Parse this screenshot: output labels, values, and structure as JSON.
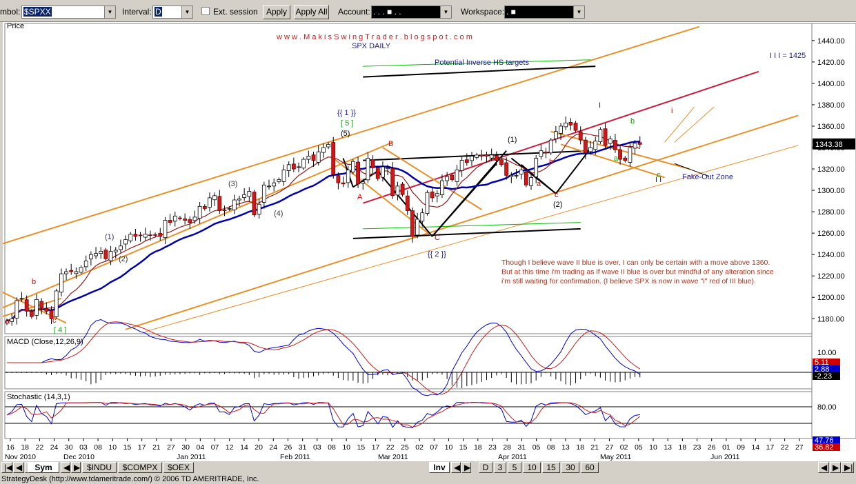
{
  "toolbar": {
    "symbol_label": "mbol:",
    "symbol_value": "$SPXX",
    "interval_label": "Interval:",
    "interval_value": "D",
    "ext_session_label": "Ext. session",
    "apply_label": "Apply",
    "apply_all_label": "Apply All",
    "account_label": "Account:",
    "account_value": ".   .   .   ■   .   .",
    "workspace_label": "Workspace:",
    "workspace_value": ".   ■"
  },
  "chart_data": [
    {
      "type": "candlestick",
      "title": "SPX DAILY",
      "watermark": "w w w . M a k i s S w i n g T r a d e r . b l o g s p o t . c o m",
      "ylabel": "Price",
      "ylim": [
        1166,
        1456
      ],
      "yticks": [
        1180,
        1200,
        1220,
        1240,
        1260,
        1280,
        1300,
        1320,
        1340,
        1360,
        1380,
        1400,
        1420,
        1440
      ],
      "last_price": "1343.38",
      "trading_days": [
        "Nov 16",
        "Nov 17",
        "Nov 18",
        "Nov 19",
        "Nov 22",
        "Nov 23",
        "Nov 24",
        "Nov 26",
        "Nov 29",
        "Nov 30",
        "Dec 01",
        "Dec 02",
        "Dec 03",
        "Dec 06",
        "Dec 07",
        "Dec 08",
        "Dec 09",
        "Dec 10",
        "Dec 13",
        "Dec 14",
        "Dec 15",
        "Dec 16",
        "Dec 17",
        "Dec 20",
        "Dec 21",
        "Dec 22",
        "Dec 23",
        "Dec 27",
        "Dec 28",
        "Dec 29",
        "Dec 30",
        "Dec 31",
        "Jan 03",
        "Jan 04",
        "Jan 05",
        "Jan 06",
        "Jan 07",
        "Jan 10",
        "Jan 11",
        "Jan 12",
        "Jan 13",
        "Jan 14",
        "Jan 18",
        "Jan 19",
        "Jan 20",
        "Jan 21",
        "Jan 24",
        "Jan 25",
        "Jan 26",
        "Jan 27",
        "Jan 28",
        "Jan 31",
        "Feb 01",
        "Feb 02",
        "Feb 03",
        "Feb 04",
        "Feb 07",
        "Feb 08",
        "Feb 09",
        "Feb 10",
        "Feb 11",
        "Feb 14",
        "Feb 15",
        "Feb 16",
        "Feb 17",
        "Feb 18",
        "Feb 22",
        "Feb 23",
        "Feb 24",
        "Feb 25",
        "Feb 28",
        "Mar 01",
        "Mar 02",
        "Mar 03",
        "Mar 04",
        "Mar 07",
        "Mar 08",
        "Mar 09",
        "Mar 10",
        "Mar 11",
        "Mar 14",
        "Mar 15",
        "Mar 16",
        "Mar 17",
        "Mar 18",
        "Mar 21",
        "Mar 22",
        "Mar 23",
        "Mar 24",
        "Mar 25",
        "Mar 28",
        "Mar 29",
        "Mar 30",
        "Mar 31",
        "Apr 01",
        "Apr 04",
        "Apr 05",
        "Apr 06",
        "Apr 07",
        "Apr 08",
        "Apr 11",
        "Apr 12",
        "Apr 13",
        "Apr 14",
        "Apr 15",
        "Apr 18",
        "Apr 19",
        "Apr 20",
        "Apr 21",
        "Apr 25",
        "Apr 26",
        "Apr 27",
        "Apr 28",
        "Apr 29",
        "May 02",
        "May 03",
        "May 04",
        "May 05",
        "May 06",
        "May 09",
        "May 10",
        "May 11",
        "May 12",
        "May 13",
        "May 16",
        "May 17",
        "May 18",
        "May 19",
        "May 20"
      ],
      "close": [
        1178,
        1180,
        1197,
        1199,
        1187,
        1182,
        1198,
        1190,
        1187,
        1180,
        1206,
        1222,
        1224,
        1224,
        1224,
        1228,
        1234,
        1240,
        1241,
        1243,
        1236,
        1243,
        1244,
        1248,
        1254,
        1259,
        1257,
        1258,
        1259,
        1258,
        1258,
        1257,
        1272,
        1270,
        1276,
        1274,
        1272,
        1270,
        1275,
        1285,
        1283,
        1293,
        1295,
        1281,
        1281,
        1283,
        1291,
        1292,
        1296,
        1299,
        1277,
        1287,
        1305,
        1304,
        1307,
        1310,
        1319,
        1324,
        1320,
        1322,
        1329,
        1332,
        1328,
        1336,
        1340,
        1343,
        1315,
        1307,
        1306,
        1319,
        1327,
        1306,
        1308,
        1330,
        1321,
        1311,
        1322,
        1321,
        1295,
        1304,
        1296,
        1281,
        1257,
        1273,
        1279,
        1298,
        1293,
        1297,
        1309,
        1313,
        1310,
        1319,
        1328,
        1326,
        1332,
        1333,
        1332,
        1332,
        1333,
        1328,
        1324,
        1314,
        1314,
        1314,
        1319,
        1305,
        1312,
        1330,
        1337,
        1335,
        1347,
        1355,
        1360,
        1363,
        1361,
        1356,
        1347,
        1335,
        1340,
        1346,
        1357,
        1342,
        1348,
        1338,
        1329,
        1328,
        1340,
        1344,
        1343
      ],
      "series": [
        {
          "name": "MA fast",
          "color": "#8b1a1a"
        },
        {
          "name": "MA slow",
          "color": "#0000aa"
        }
      ],
      "annotations": [
        {
          "text": "Potential Inverse HS targets",
          "color": "#1a1a9a"
        },
        {
          "text": "I I I = 1425",
          "color": "#1a1a9a"
        },
        {
          "text": "{{ 1 }}",
          "color": "#1a1a9a"
        },
        {
          "text": "[ 5 ]",
          "color": "#00aa00"
        },
        {
          "text": "(5)",
          "color": "#000000"
        },
        {
          "text": "{{ 2 }}",
          "color": "#1a1a9a"
        },
        {
          "text": "[ 4 ]",
          "color": "#00aa00"
        },
        {
          "text": "(1)",
          "color": "#333366"
        },
        {
          "text": "(2)",
          "color": "#333333"
        },
        {
          "text": "(3)",
          "color": "#333333"
        },
        {
          "text": "(4)",
          "color": "#333333"
        },
        {
          "text": "(1)",
          "color": "#000000"
        },
        {
          "text": "(2)",
          "color": "#000000"
        },
        {
          "text": "A",
          "color": "#cc0000"
        },
        {
          "text": "B",
          "color": "#cc0000"
        },
        {
          "text": "C",
          "color": "#cc0000"
        },
        {
          "text": "a",
          "color": "#cc0000"
        },
        {
          "text": "b",
          "color": "#cc0000"
        },
        {
          "text": "c",
          "color": "#cc0000"
        },
        {
          "text": "a",
          "color": "#cc0000"
        },
        {
          "text": "b",
          "color": "#cc0000"
        },
        {
          "text": "c",
          "color": "#cc0000"
        },
        {
          "text": "I",
          "color": "#1a1a9a"
        },
        {
          "text": "I I",
          "color": "#1a1a9a"
        },
        {
          "text": "a",
          "color": "#00aa00"
        },
        {
          "text": "b",
          "color": "#00aa00"
        },
        {
          "text": "c",
          "color": "#00aa00"
        },
        {
          "text": "i",
          "color": "#cc0000"
        },
        {
          "text": "Fake-Out Zone",
          "color": "#1a1a9a"
        }
      ],
      "commentary": [
        "Though I believe wave II blue is over, I can only be certain with a move above 1360.",
        "But at this time i'm trading as if wave II blue is over but mindful of any alteration since",
        "i'm still waiting for confirmation. (I believe SPX is now in wave \"i\" red of III blue)."
      ],
      "x_date_ticks": [
        "16",
        "18",
        "22",
        "24",
        "30",
        "03",
        "08",
        "10",
        "15",
        "17",
        "21",
        "27",
        "30",
        "04",
        "07",
        "12",
        "14",
        "20",
        "24",
        "26",
        "31",
        "03",
        "08",
        "10",
        "15",
        "17",
        "22",
        "25",
        "02",
        "07",
        "10",
        "15",
        "18",
        "23",
        "28",
        "31",
        "05",
        "08",
        "13",
        "18",
        "21",
        "27",
        "02",
        "05",
        "10",
        "13",
        "18",
        "23",
        "26",
        "01",
        "09",
        "14",
        "17",
        "22",
        "27"
      ],
      "x_month_labels": [
        "Nov 2010",
        "Dec 2010",
        "Jan 2011",
        "Feb 2011",
        "Mar 2011",
        "Apr 2011",
        "May 2011",
        "Jun 2011"
      ]
    },
    {
      "type": "line",
      "title": "MACD (Close,12,26,9)",
      "yticks": [
        10.0
      ],
      "last_values": [
        "5.11",
        "2.88",
        "-2.23"
      ]
    },
    {
      "type": "line",
      "title": "Stochastic (14,3,1)",
      "yticks": [
        80.0
      ],
      "last_values": [
        "47.76",
        "36.82"
      ]
    }
  ],
  "bottom_tabs": {
    "sym": "Sym",
    "indu": "$INDU",
    "compx": "$COMPX",
    "oex": "$OEX",
    "inv": "Inv",
    "intervals": [
      "D",
      "3",
      "5",
      "10",
      "15",
      "30",
      "60"
    ]
  },
  "status": "StrategyDesk (http://www.tdameritrade.com/) © 2006 TD AMERITRADE, Inc."
}
